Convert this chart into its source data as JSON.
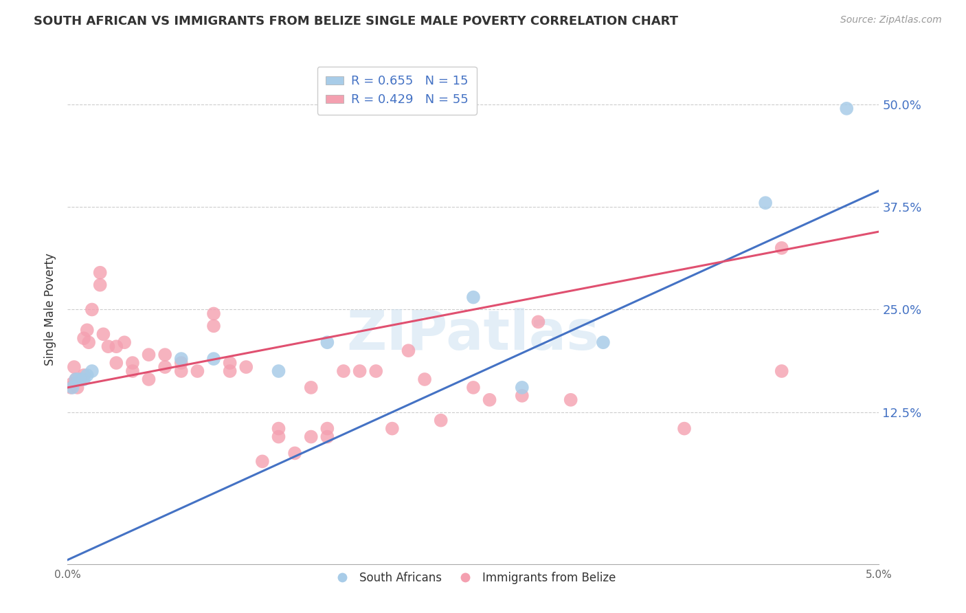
{
  "title": "SOUTH AFRICAN VS IMMIGRANTS FROM BELIZE SINGLE MALE POVERTY CORRELATION CHART",
  "source": "Source: ZipAtlas.com",
  "ylabel": "Single Male Poverty",
  "r_blue": 0.655,
  "n_blue": 15,
  "r_pink": 0.429,
  "n_pink": 55,
  "legend_labels": [
    "South Africans",
    "Immigrants from Belize"
  ],
  "blue_color": "#a8cce8",
  "pink_color": "#f4a0b0",
  "blue_line_color": "#4472c4",
  "pink_line_color": "#e05070",
  "watermark": "ZIPatlas",
  "yticklabels": [
    "12.5%",
    "25.0%",
    "37.5%",
    "50.0%"
  ],
  "ytick_values": [
    0.125,
    0.25,
    0.375,
    0.5
  ],
  "xmin": 0.0,
  "xmax": 0.05,
  "ymin": -0.06,
  "ymax": 0.56,
  "blue_x": [
    0.0003,
    0.0005,
    0.0007,
    0.001,
    0.0012,
    0.0015,
    0.007,
    0.009,
    0.013,
    0.016,
    0.025,
    0.028,
    0.033,
    0.043,
    0.048
  ],
  "blue_y": [
    0.155,
    0.165,
    0.165,
    0.165,
    0.17,
    0.175,
    0.19,
    0.19,
    0.175,
    0.21,
    0.265,
    0.155,
    0.21,
    0.38,
    0.495
  ],
  "pink_x": [
    0.0002,
    0.0003,
    0.0004,
    0.0005,
    0.0006,
    0.0008,
    0.001,
    0.001,
    0.0012,
    0.0013,
    0.0015,
    0.002,
    0.002,
    0.0022,
    0.0025,
    0.003,
    0.003,
    0.0035,
    0.004,
    0.004,
    0.005,
    0.005,
    0.006,
    0.006,
    0.007,
    0.007,
    0.008,
    0.009,
    0.009,
    0.01,
    0.01,
    0.011,
    0.012,
    0.013,
    0.013,
    0.014,
    0.015,
    0.015,
    0.016,
    0.016,
    0.017,
    0.018,
    0.019,
    0.02,
    0.021,
    0.022,
    0.023,
    0.025,
    0.026,
    0.028,
    0.029,
    0.031,
    0.038,
    0.044,
    0.044
  ],
  "pink_y": [
    0.155,
    0.16,
    0.18,
    0.165,
    0.155,
    0.165,
    0.215,
    0.17,
    0.225,
    0.21,
    0.25,
    0.295,
    0.28,
    0.22,
    0.205,
    0.205,
    0.185,
    0.21,
    0.185,
    0.175,
    0.195,
    0.165,
    0.195,
    0.18,
    0.185,
    0.175,
    0.175,
    0.245,
    0.23,
    0.185,
    0.175,
    0.18,
    0.065,
    0.095,
    0.105,
    0.075,
    0.095,
    0.155,
    0.095,
    0.105,
    0.175,
    0.175,
    0.175,
    0.105,
    0.2,
    0.165,
    0.115,
    0.155,
    0.14,
    0.145,
    0.235,
    0.14,
    0.105,
    0.175,
    0.325
  ],
  "blue_line_x": [
    0.0,
    0.05
  ],
  "blue_line_y": [
    -0.055,
    0.395
  ],
  "pink_line_x": [
    0.0,
    0.05
  ],
  "pink_line_y": [
    0.155,
    0.345
  ]
}
